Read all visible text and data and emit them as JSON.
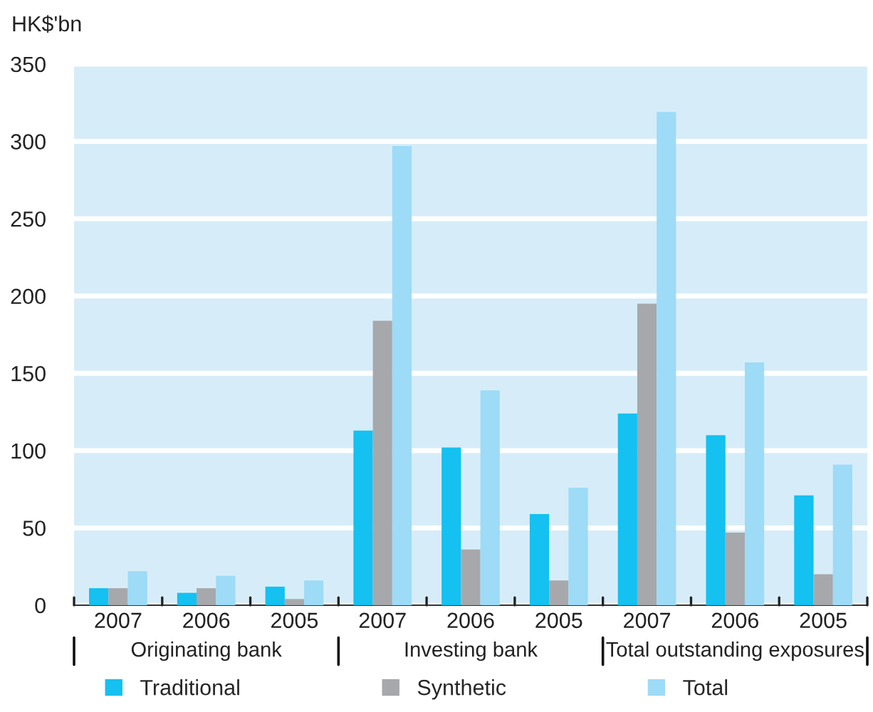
{
  "chart_data": {
    "type": "bar",
    "ylabel": "HK$'bn",
    "categories": [
      "2007",
      "2006",
      "2005",
      "2007",
      "2006",
      "2005",
      "2007",
      "2006",
      "2005"
    ],
    "series": [
      {
        "name": "Traditional",
        "color": "#14c1f0",
        "values": [
          11,
          8,
          12,
          113,
          102,
          59,
          124,
          110,
          71
        ]
      },
      {
        "name": "Synthetic",
        "color": "#a7a8ab",
        "values": [
          11,
          11,
          4,
          184,
          36,
          16,
          195,
          47,
          20
        ]
      },
      {
        "name": "Total",
        "color": "#9ddbf7",
        "values": [
          22,
          19,
          16,
          297,
          139,
          76,
          319,
          157,
          91
        ]
      }
    ],
    "annotations": [
      "Originating bank",
      "Investing bank",
      "Total outstanding exposures"
    ],
    "ylim": [
      0,
      350
    ],
    "yticks": [
      0,
      50,
      100,
      150,
      200,
      250,
      300,
      350
    ],
    "grid": "y",
    "legend": "bottom"
  }
}
